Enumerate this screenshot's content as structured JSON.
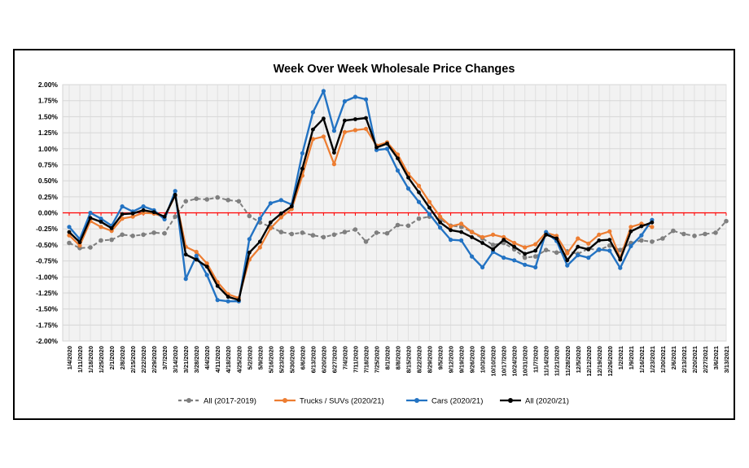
{
  "chart_data": {
    "type": "line",
    "title": "Week Over Week Wholesale Price Changes",
    "legend_position": "bottom",
    "grid": true,
    "plot_background": "#F2F2F2",
    "zero_line_color": "#FF0000",
    "y_axis": {
      "min": -2.0,
      "max": 2.0,
      "step": 0.25,
      "format": "percent",
      "tick_labels": [
        "2.00%",
        "1.75%",
        "1.50%",
        "1.25%",
        "1.00%",
        "0.75%",
        "0.50%",
        "0.25%",
        "0.00%",
        "-0.25%",
        "-0.50%",
        "-0.75%",
        "-1.00%",
        "-1.25%",
        "-1.50%",
        "-1.75%",
        "-2.00%"
      ]
    },
    "x_labels": [
      "1/4/2020",
      "1/11/2020",
      "1/18/2020",
      "1/25/2020",
      "2/1/2020",
      "2/8/2020",
      "2/15/2020",
      "2/22/2020",
      "2/29/2020",
      "3/7/2020",
      "3/14/2020",
      "3/21/2020",
      "3/28/2020",
      "4/4/2020",
      "4/11/2020",
      "4/18/2020",
      "4/25/2020",
      "5/2/2020",
      "5/9/2020",
      "5/16/2020",
      "5/23/2020",
      "5/30/2020",
      "6/6/2020",
      "6/13/2020",
      "6/20/2020",
      "6/27/2020",
      "7/4/2020",
      "7/11/2020",
      "7/18/2020",
      "7/25/2020",
      "8/1/2020",
      "8/8/2020",
      "8/15/2020",
      "8/22/2020",
      "8/29/2020",
      "9/5/2020",
      "9/12/2020",
      "9/19/2020",
      "9/26/2020",
      "10/3/2020",
      "10/10/2020",
      "10/17/2020",
      "10/24/2020",
      "10/31/2020",
      "11/7/2020",
      "11/14/2020",
      "11/21/2020",
      "11/28/2020",
      "12/5/2020",
      "12/12/2020",
      "12/19/2020",
      "12/26/2020",
      "1/2/2021",
      "1/9/2021",
      "1/16/2021",
      "1/23/2021",
      "1/30/2021",
      "2/6/2021",
      "2/13/2021",
      "2/20/2021",
      "2/27/2021",
      "3/6/2021",
      "3/13/2021"
    ],
    "series": [
      {
        "name": "All (2017-2019)",
        "color": "#7F7F7F",
        "style": "dashed",
        "values": [
          -0.47,
          -0.55,
          -0.54,
          -0.43,
          -0.42,
          -0.34,
          -0.36,
          -0.34,
          -0.31,
          -0.32,
          -0.06,
          0.18,
          0.22,
          0.21,
          0.24,
          0.2,
          0.18,
          -0.05,
          -0.15,
          -0.22,
          -0.3,
          -0.33,
          -0.31,
          -0.35,
          -0.38,
          -0.34,
          -0.3,
          -0.26,
          -0.45,
          -0.31,
          -0.32,
          -0.19,
          -0.2,
          -0.09,
          -0.06,
          -0.1,
          -0.2,
          -0.22,
          -0.3,
          -0.4,
          -0.5,
          -0.47,
          -0.57,
          -0.7,
          -0.68,
          -0.58,
          -0.62,
          -0.6,
          -0.64,
          -0.56,
          -0.58,
          -0.51,
          -0.58,
          -0.47,
          -0.43,
          -0.45,
          -0.4,
          -0.28,
          -0.33,
          -0.36,
          -0.33,
          -0.31,
          -0.13
        ]
      },
      {
        "name": "Trucks / SUVs (2020/21)",
        "color": "#ED7D31",
        "style": "solid",
        "values": [
          -0.35,
          -0.51,
          -0.13,
          -0.22,
          -0.28,
          -0.09,
          -0.06,
          0.0,
          -0.01,
          -0.07,
          0.27,
          -0.53,
          -0.61,
          -0.79,
          -1.08,
          -1.27,
          -1.33,
          -0.73,
          -0.54,
          -0.24,
          -0.07,
          0.06,
          0.58,
          1.15,
          1.19,
          0.76,
          1.26,
          1.29,
          1.31,
          1.05,
          1.1,
          0.91,
          0.61,
          0.42,
          0.17,
          -0.06,
          -0.21,
          -0.17,
          -0.3,
          -0.38,
          -0.34,
          -0.38,
          -0.47,
          -0.54,
          -0.49,
          -0.31,
          -0.36,
          -0.63,
          -0.4,
          -0.48,
          -0.34,
          -0.29,
          -0.7,
          -0.22,
          -0.17,
          -0.22,
          null,
          null,
          null,
          null,
          null,
          null,
          null
        ]
      },
      {
        "name": "Cars (2020/21)",
        "color": "#2373C3",
        "style": "solid",
        "values": [
          -0.22,
          -0.41,
          0.0,
          -0.09,
          -0.2,
          0.1,
          0.02,
          0.1,
          0.04,
          -0.1,
          0.34,
          -1.03,
          -0.67,
          -0.97,
          -1.36,
          -1.38,
          -1.38,
          -0.41,
          -0.09,
          0.15,
          0.2,
          0.13,
          0.93,
          1.57,
          1.9,
          1.28,
          1.74,
          1.81,
          1.77,
          0.98,
          1.0,
          0.66,
          0.38,
          0.17,
          -0.02,
          -0.23,
          -0.42,
          -0.43,
          -0.68,
          -0.85,
          -0.61,
          -0.7,
          -0.74,
          -0.81,
          -0.85,
          -0.3,
          -0.44,
          -0.82,
          -0.66,
          -0.7,
          -0.57,
          -0.59,
          -0.86,
          -0.52,
          -0.35,
          -0.11,
          null,
          null,
          null,
          null,
          null,
          null,
          null
        ]
      },
      {
        "name": "All (2020/21)",
        "color": "#000000",
        "style": "solid",
        "values": [
          -0.3,
          -0.46,
          -0.08,
          -0.14,
          -0.24,
          -0.02,
          -0.01,
          0.04,
          0.01,
          -0.06,
          0.28,
          -0.65,
          -0.73,
          -0.84,
          -1.14,
          -1.31,
          -1.36,
          -0.62,
          -0.45,
          -0.15,
          -0.01,
          0.1,
          0.69,
          1.3,
          1.47,
          0.94,
          1.44,
          1.46,
          1.48,
          1.02,
          1.08,
          0.85,
          0.55,
          0.32,
          0.08,
          -0.15,
          -0.27,
          -0.3,
          -0.38,
          -0.47,
          -0.57,
          -0.42,
          -0.53,
          -0.64,
          -0.59,
          -0.34,
          -0.4,
          -0.74,
          -0.53,
          -0.57,
          -0.43,
          -0.42,
          -0.73,
          -0.29,
          -0.21,
          -0.15,
          null,
          null,
          null,
          null,
          null,
          null,
          null
        ]
      }
    ]
  }
}
